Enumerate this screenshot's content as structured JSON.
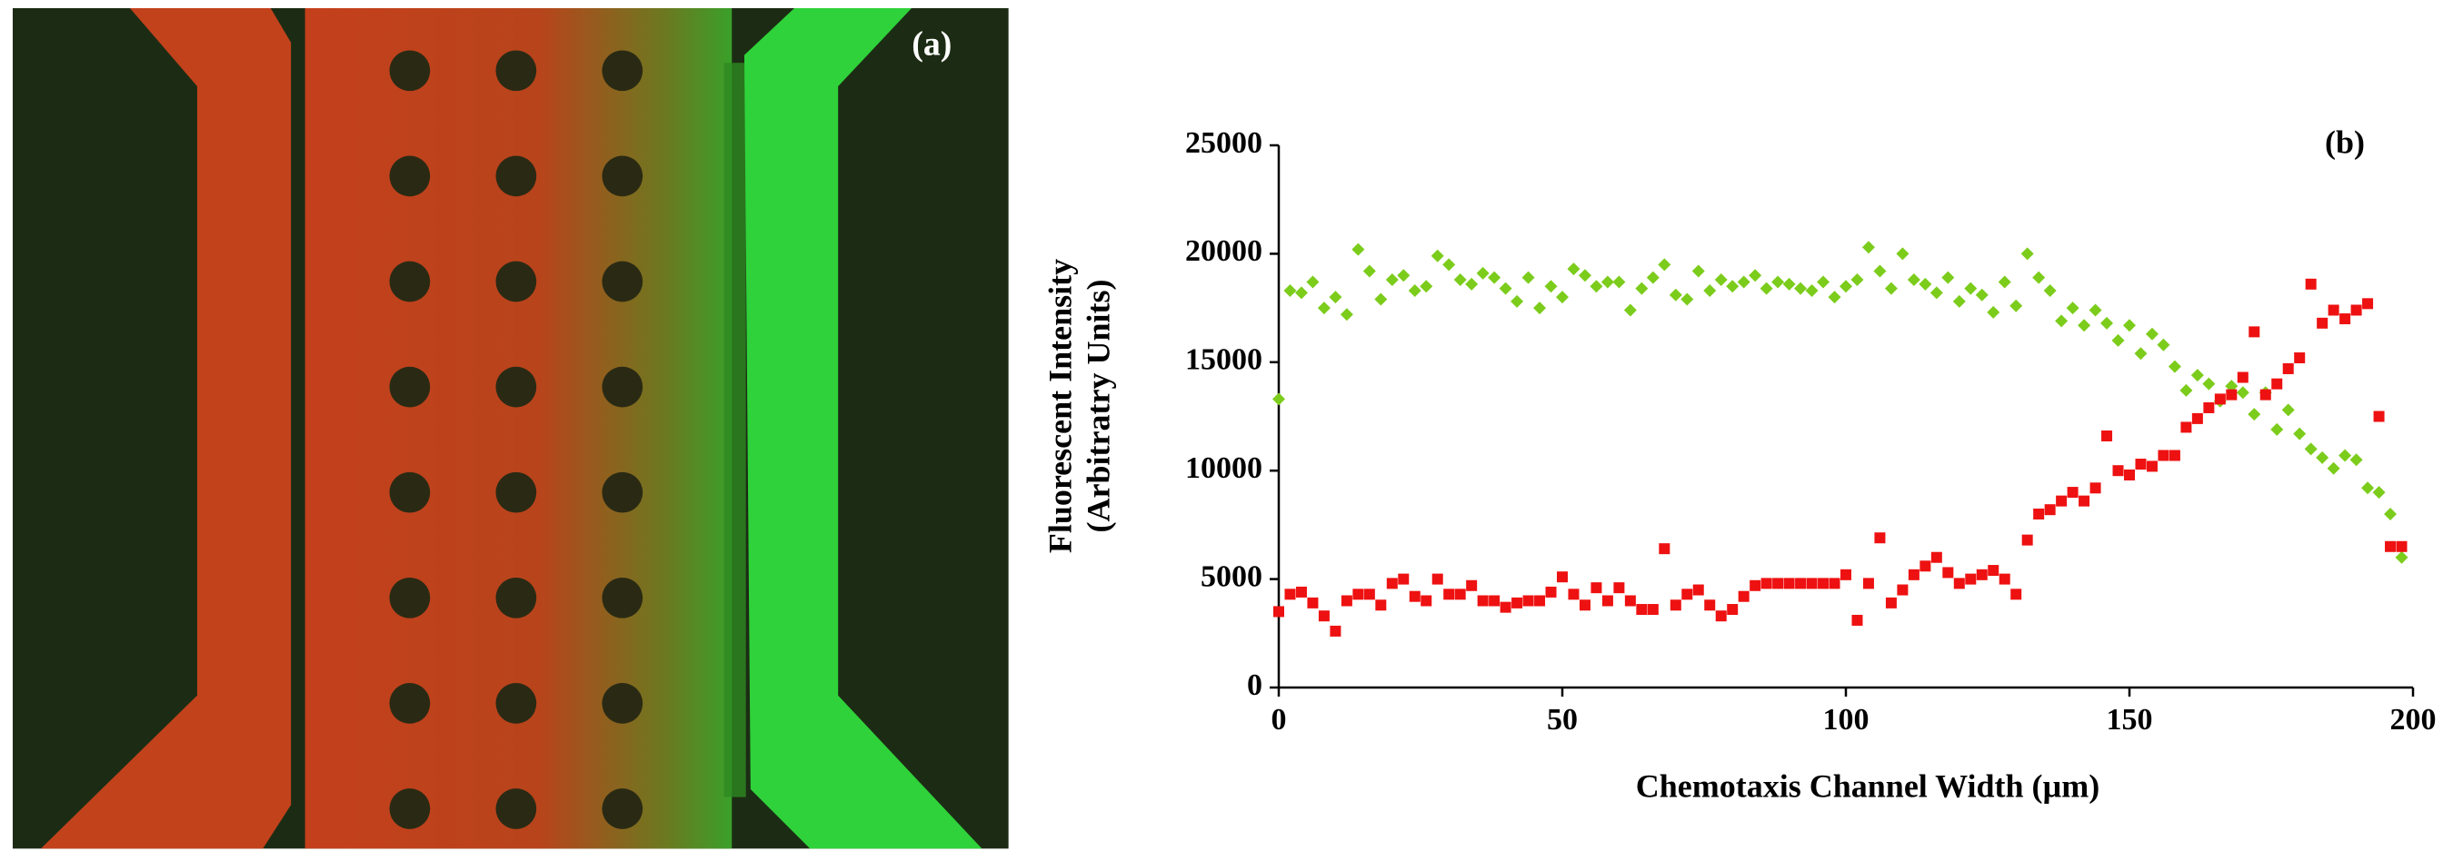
{
  "panel_a": {
    "label": "(a)"
  },
  "chart_data": {
    "type": "scatter",
    "panel_label": "(b)",
    "x_label": "Chemotaxis Channel Width (µm)",
    "y_label": [
      "Fluorescent Intensity",
      "(Arbitratry Units)"
    ],
    "x": [
      0,
      2,
      4,
      6,
      8,
      10,
      12,
      14,
      16,
      18,
      20,
      22,
      24,
      26,
      28,
      30,
      32,
      34,
      36,
      38,
      40,
      42,
      44,
      46,
      48,
      50,
      52,
      54,
      56,
      58,
      60,
      62,
      64,
      66,
      68,
      70,
      72,
      74,
      76,
      78,
      80,
      82,
      84,
      86,
      88,
      90,
      92,
      94,
      96,
      98,
      100,
      102,
      104,
      106,
      108,
      110,
      112,
      114,
      116,
      118,
      120,
      122,
      124,
      126,
      128,
      130,
      132,
      134,
      136,
      138,
      140,
      142,
      144,
      146,
      148,
      150,
      152,
      154,
      156,
      158,
      160,
      162,
      164,
      166,
      168,
      170,
      172,
      174,
      176,
      178,
      180,
      182,
      184,
      186,
      188,
      190,
      192,
      194,
      196,
      198
    ],
    "series": [
      {
        "color": "#7ccc1c",
        "marker": "diamond",
        "values": [
          13300,
          18300,
          18200,
          18700,
          17500,
          18000,
          17200,
          20200,
          19200,
          17900,
          18800,
          19000,
          18300,
          18500,
          19900,
          19500,
          18800,
          18600,
          19100,
          18900,
          18400,
          17800,
          18900,
          17500,
          18500,
          18000,
          19300,
          19000,
          18500,
          18700,
          18700,
          17400,
          18400,
          18900,
          19500,
          18100,
          17900,
          19200,
          18300,
          18800,
          18500,
          18700,
          19000,
          18400,
          18700,
          18600,
          18400,
          18300,
          18700,
          18000,
          18500,
          18800,
          20300,
          19200,
          18400,
          20000,
          18800,
          18600,
          18200,
          18900,
          17800,
          18400,
          18100,
          17300,
          18700,
          17600,
          20000,
          18900,
          18300,
          16900,
          17500,
          16700,
          17400,
          16800,
          16000,
          16700,
          15400,
          16300,
          15800,
          14800,
          13700,
          14400,
          14000,
          13200,
          13900,
          13600,
          12600,
          13600,
          11900,
          12800,
          11700,
          11000,
          10600,
          10100,
          10700,
          10500,
          9200,
          9000,
          8000,
          6000
        ]
      },
      {
        "color": "#ee1111",
        "marker": "square",
        "values": [
          3500,
          4300,
          4400,
          3900,
          3300,
          2600,
          4000,
          4300,
          4300,
          3800,
          4800,
          5000,
          4200,
          4000,
          5000,
          4300,
          4300,
          4700,
          4000,
          4000,
          3700,
          3900,
          4000,
          4000,
          4400,
          5100,
          4300,
          3800,
          4600,
          4000,
          4600,
          4000,
          3600,
          3600,
          6400,
          3800,
          4300,
          4500,
          3800,
          3300,
          3600,
          4200,
          4700,
          4800,
          4800,
          4800,
          4800,
          4800,
          4800,
          4800,
          5200,
          3100,
          4800,
          6900,
          3900,
          4500,
          5200,
          5600,
          6000,
          5300,
          4800,
          5000,
          5200,
          5400,
          5000,
          4300,
          6800,
          8000,
          8200,
          8600,
          9000,
          8600,
          9200,
          11600,
          10000,
          9800,
          10300,
          10200,
          10700,
          10700,
          12000,
          12400,
          12900,
          13300,
          13500,
          14300,
          16400,
          13500,
          14000,
          14700,
          15200,
          18600,
          16800,
          17400,
          17000,
          17400,
          17700,
          12500,
          6500,
          6500
        ]
      }
    ],
    "xlim": [
      0,
      200
    ],
    "xticks": [
      0,
      50,
      100,
      150,
      200
    ],
    "ylim": [
      0,
      25000
    ],
    "yticks": [
      0,
      5000,
      10000,
      15000,
      20000,
      25000
    ]
  }
}
